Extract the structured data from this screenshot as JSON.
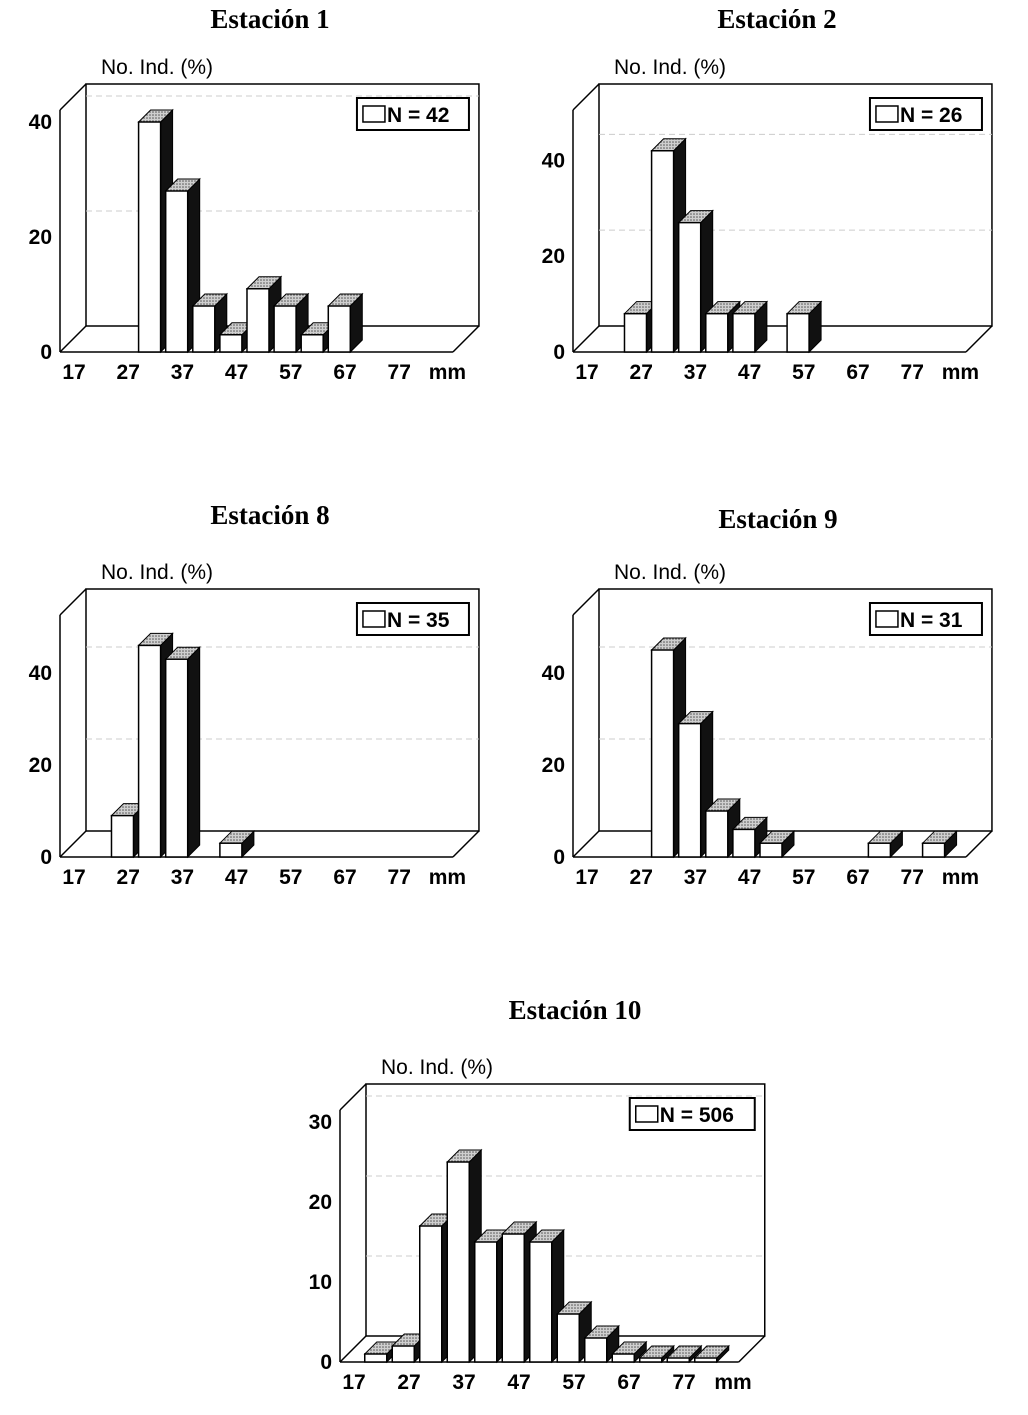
{
  "chart_data": [
    {
      "type": "bar",
      "title": "Estación 1",
      "ylabel": "No. Ind. (%)",
      "xunit": "mm",
      "legend": "N = 42",
      "ticks": [
        0,
        20,
        40
      ],
      "ylim": [
        0,
        40
      ],
      "grid": true,
      "categories": [
        "17",
        "22",
        "27",
        "32",
        "37",
        "42",
        "47",
        "52",
        "57",
        "62",
        "67",
        "72",
        "77"
      ],
      "values": [
        0,
        0,
        40,
        28,
        8,
        3,
        11,
        8,
        3,
        8,
        0,
        0,
        0
      ],
      "x_tick_labels": [
        "17",
        "27",
        "37",
        "47",
        "57",
        "67",
        "77"
      ]
    },
    {
      "type": "bar",
      "title": "Estación 2",
      "ylabel": "No. Ind. (%)",
      "xunit": "mm",
      "legend": "N = 26",
      "ticks": [
        0,
        20,
        40
      ],
      "ylim": [
        0,
        48
      ],
      "grid": true,
      "categories": [
        "17",
        "22",
        "27",
        "32",
        "37",
        "42",
        "47",
        "52",
        "57",
        "62",
        "67",
        "72",
        "77"
      ],
      "values": [
        0,
        8,
        42,
        27,
        8,
        8,
        0,
        8,
        0,
        0,
        0,
        0,
        0
      ],
      "x_tick_labels": [
        "17",
        "27",
        "37",
        "47",
        "57",
        "67",
        "77"
      ]
    },
    {
      "type": "bar",
      "title": "Estación 8",
      "ylabel": "No. Ind. (%)",
      "xunit": "mm",
      "legend": "N = 35",
      "ticks": [
        0,
        20,
        40
      ],
      "ylim": [
        0,
        50
      ],
      "grid": true,
      "categories": [
        "17",
        "22",
        "27",
        "32",
        "37",
        "42",
        "47",
        "52",
        "57",
        "62",
        "67",
        "72",
        "77"
      ],
      "values": [
        0,
        9,
        46,
        43,
        0,
        3,
        0,
        0,
        0,
        0,
        0,
        0,
        0
      ],
      "x_tick_labels": [
        "17",
        "27",
        "37",
        "47",
        "57",
        "67",
        "77"
      ]
    },
    {
      "type": "bar",
      "title": "Estación 9",
      "ylabel": "No. Ind. (%)",
      "xunit": "mm",
      "legend": "N = 31",
      "ticks": [
        0,
        20,
        40
      ],
      "ylim": [
        0,
        50
      ],
      "grid": true,
      "categories": [
        "17",
        "22",
        "27",
        "32",
        "37",
        "42",
        "47",
        "52",
        "57",
        "62",
        "67",
        "72",
        "77"
      ],
      "values": [
        0,
        0,
        45,
        29,
        10,
        6,
        3,
        0,
        0,
        0,
        3,
        0,
        3
      ],
      "x_tick_labels": [
        "17",
        "27",
        "37",
        "47",
        "57",
        "67",
        "77"
      ]
    },
    {
      "type": "bar",
      "title": "Estación 10",
      "ylabel": "No. Ind. (%)",
      "xunit": "mm",
      "legend": "N = 506",
      "ticks": [
        0,
        10,
        20,
        30
      ],
      "ylim": [
        0,
        30
      ],
      "grid": true,
      "categories": [
        "17",
        "22",
        "27",
        "32",
        "37",
        "42",
        "47",
        "52",
        "57",
        "62",
        "67",
        "72",
        "77"
      ],
      "values": [
        1,
        2,
        17,
        25,
        15,
        16,
        15,
        6,
        3,
        1,
        0.5,
        0.5,
        0.5
      ],
      "x_tick_labels": [
        "17",
        "27",
        "37",
        "47",
        "57",
        "67",
        "77"
      ]
    }
  ]
}
